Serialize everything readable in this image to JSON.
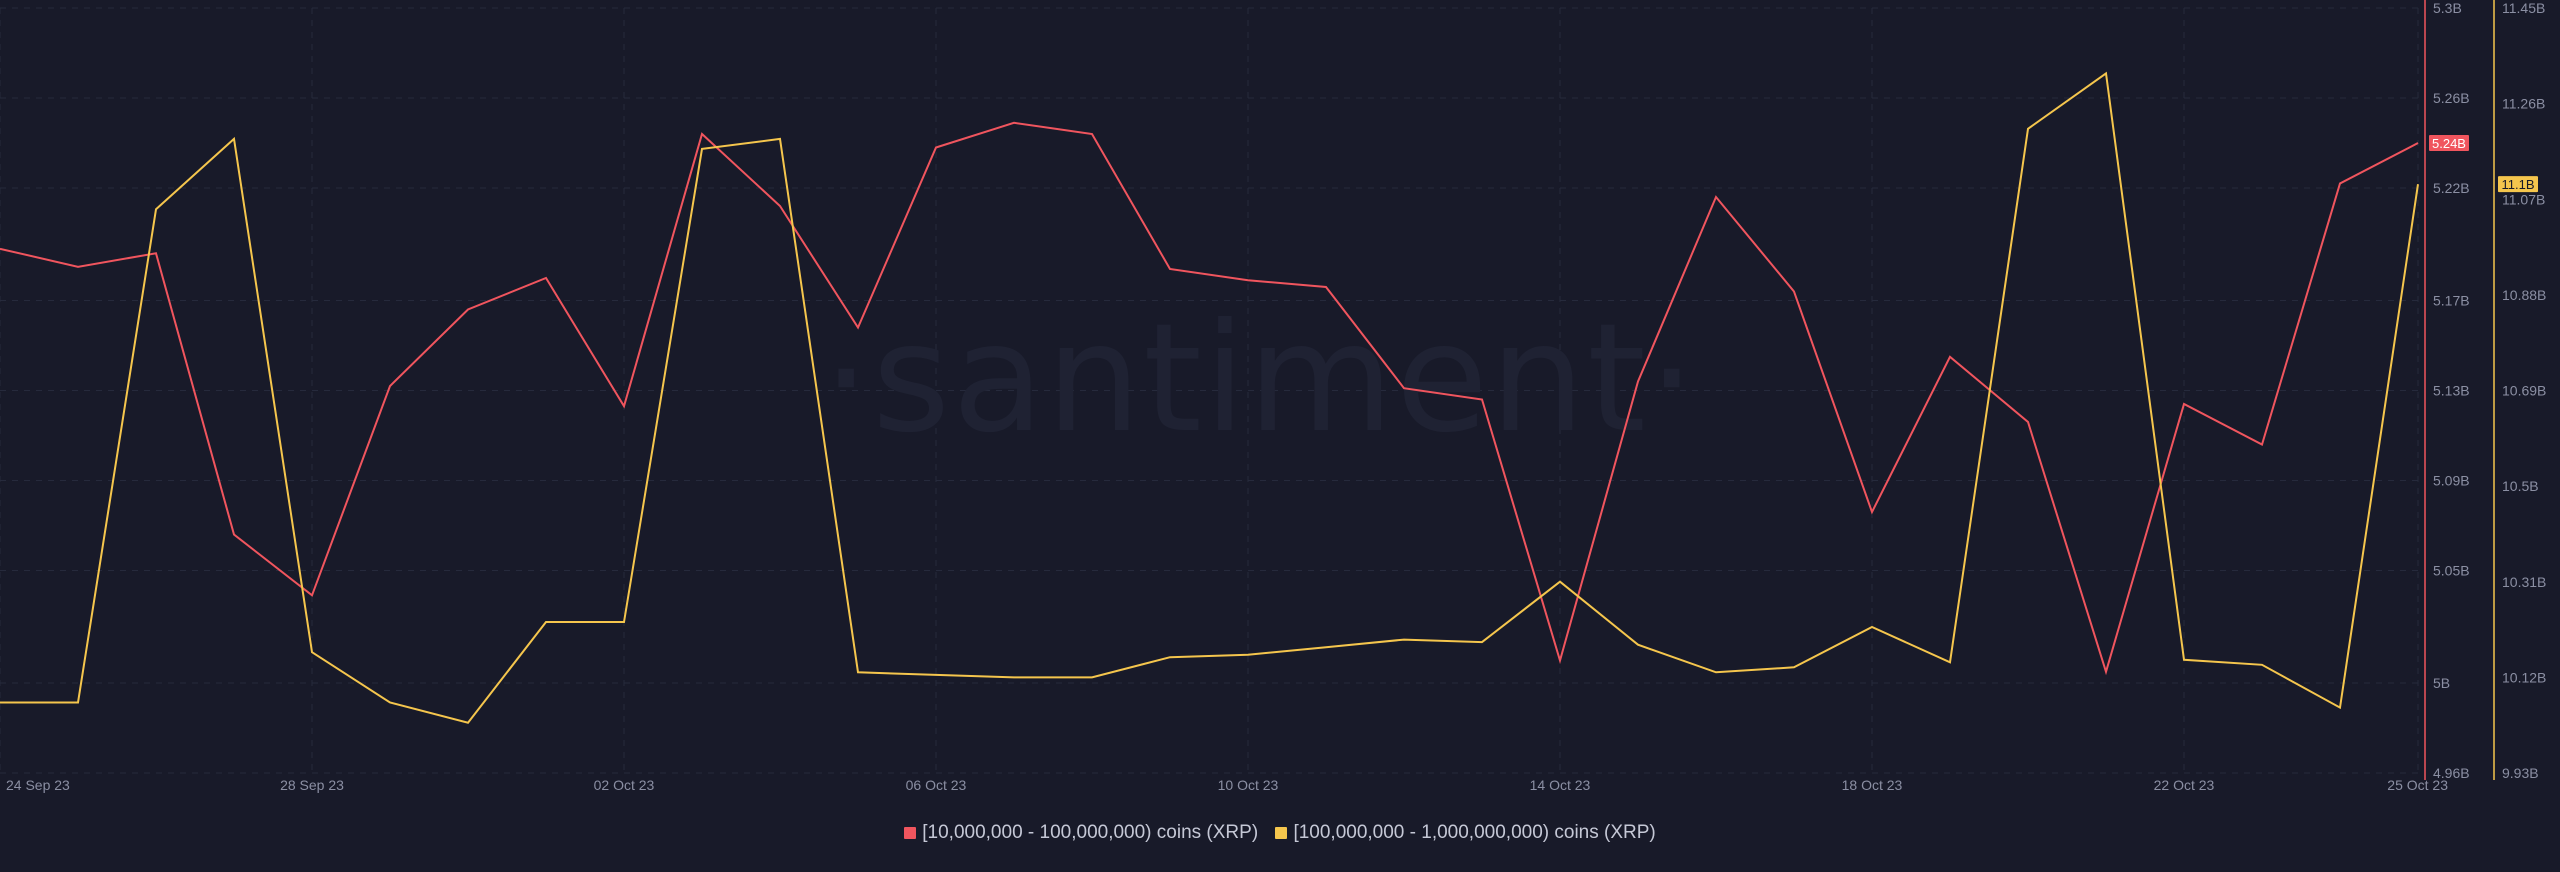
{
  "chart_data": {
    "type": "line",
    "watermark": "·santiment·",
    "x": [
      "24 Sep 23",
      "25 Sep 23",
      "26 Sep 23",
      "27 Sep 23",
      "28 Sep 23",
      "29 Sep 23",
      "30 Sep 23",
      "01 Oct 23",
      "02 Oct 23",
      "03 Oct 23",
      "04 Oct 23",
      "05 Oct 23",
      "06 Oct 23",
      "07 Oct 23",
      "08 Oct 23",
      "09 Oct 23",
      "10 Oct 23",
      "11 Oct 23",
      "12 Oct 23",
      "13 Oct 23",
      "14 Oct 23",
      "15 Oct 23",
      "16 Oct 23",
      "17 Oct 23",
      "18 Oct 23",
      "19 Oct 23",
      "20 Oct 23",
      "21 Oct 23",
      "22 Oct 23",
      "23 Oct 23",
      "24 Oct 23",
      "25 Oct 23"
    ],
    "x_tick_labels": [
      "24 Sep 23",
      "28 Sep 23",
      "02 Oct 23",
      "06 Oct 23",
      "10 Oct 23",
      "14 Oct 23",
      "18 Oct 23",
      "22 Oct 23",
      "25 Oct 23"
    ],
    "x_tick_index": [
      0,
      4,
      8,
      12,
      16,
      20,
      24,
      28,
      31
    ],
    "series": [
      {
        "name": "[10,000,000 - 100,000,000) coins (XRP)",
        "color": "#f0555e",
        "axis": "left",
        "values": [
          5.193,
          5.185,
          5.191,
          5.066,
          5.039,
          5.132,
          5.166,
          5.18,
          5.123,
          5.244,
          5.212,
          5.158,
          5.238,
          5.249,
          5.244,
          5.184,
          5.179,
          5.176,
          5.131,
          5.126,
          5.01,
          5.134,
          5.216,
          5.174,
          5.076,
          5.145,
          5.116,
          5.005,
          5.124,
          5.106,
          5.222,
          5.24
        ],
        "last_label": "5.24B"
      },
      {
        "name": "[100,000,000 - 1,000,000,000) coins (XRP)",
        "color": "#f5c64d",
        "axis": "right",
        "values": [
          10.07,
          10.07,
          11.05,
          11.19,
          10.17,
          10.07,
          10.03,
          10.23,
          10.23,
          11.17,
          11.19,
          10.13,
          10.125,
          10.12,
          10.12,
          10.16,
          10.165,
          10.18,
          10.195,
          10.19,
          10.31,
          10.185,
          10.13,
          10.14,
          10.22,
          10.15,
          11.21,
          11.32,
          10.155,
          10.145,
          10.06,
          11.1
        ],
        "last_label": "11.1B"
      }
    ],
    "left_axis": {
      "ylim": [
        4.96,
        5.3
      ],
      "ticks": [
        4.96,
        5.0,
        5.05,
        5.09,
        5.13,
        5.17,
        5.22,
        5.26,
        5.3
      ],
      "tick_labels": [
        "4.96B",
        "5B",
        "5.05B",
        "5.09B",
        "5.13B",
        "5.17B",
        "5.22B",
        "5.26B",
        "5.3B"
      ]
    },
    "right_axis": {
      "ylim": [
        9.93,
        11.45
      ],
      "ticks": [
        9.93,
        10.12,
        10.31,
        10.5,
        10.69,
        10.88,
        11.07,
        11.26,
        11.45
      ],
      "tick_labels": [
        "9.93B",
        "10.12B",
        "10.31B",
        "10.5B",
        "10.69B",
        "10.88B",
        "11.07B",
        "11.26B",
        "11.45B"
      ]
    },
    "grid": true,
    "legend_position": "bottom-center"
  },
  "legend": [
    {
      "label": "[10,000,000 - 100,000,000) coins (XRP)",
      "color": "#f0555e"
    },
    {
      "label": "[100,000,000 - 1,000,000,000) coins (XRP)",
      "color": "#f5c64d"
    }
  ]
}
